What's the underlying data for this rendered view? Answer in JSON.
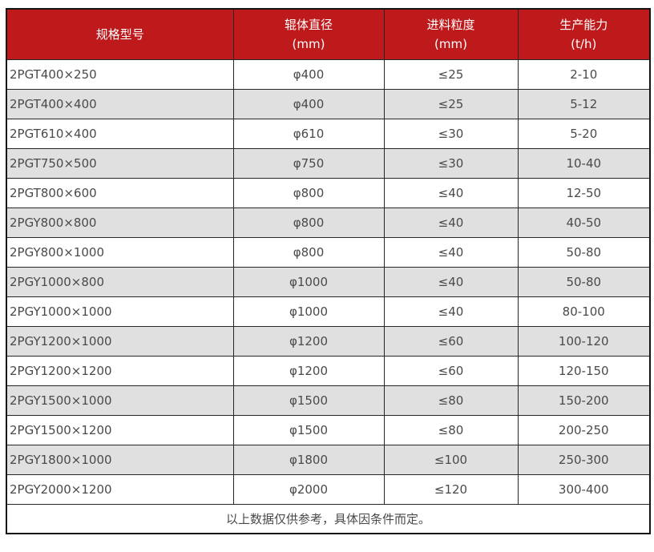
{
  "table": {
    "headers": [
      {
        "label": "规格型号",
        "sub": ""
      },
      {
        "label": "辊体直径",
        "sub": "(mm)"
      },
      {
        "label": "进料粒度",
        "sub": "(mm)"
      },
      {
        "label": "生产能力",
        "sub": "(t/h)"
      }
    ],
    "rows": [
      [
        "2PGT400×250",
        "φ400",
        "≤25",
        "2-10"
      ],
      [
        "2PGT400×400",
        "φ400",
        "≤25",
        "5-12"
      ],
      [
        "2PGT610×400",
        "φ610",
        "≤30",
        "5-20"
      ],
      [
        "2PGT750×500",
        "φ750",
        "≤30",
        "10-40"
      ],
      [
        "2PGT800×600",
        "φ800",
        "≤40",
        "12-50"
      ],
      [
        "2PGY800×800",
        "φ800",
        "≤40",
        "40-50"
      ],
      [
        "2PGY800×1000",
        "φ800",
        "≤40",
        "50-80"
      ],
      [
        "2PGY1000×800",
        "φ1000",
        "≤40",
        "50-80"
      ],
      [
        "2PGY1000×1000",
        "φ1000",
        "≤40",
        "80-100"
      ],
      [
        "2PGY1200×1000",
        "φ1200",
        "≤60",
        "100-120"
      ],
      [
        "2PGY1200×1200",
        "φ1200",
        "≤60",
        "120-150"
      ],
      [
        "2PGY1500×1000",
        "φ1500",
        "≤80",
        "150-200"
      ],
      [
        "2PGY1500×1200",
        "φ1500",
        "≤80",
        "200-250"
      ],
      [
        "2PGY1800×1000",
        "φ1800",
        "≤100",
        "250-300"
      ],
      [
        "2PGY2000×1200",
        "φ2000",
        "≤120",
        "300-400"
      ]
    ],
    "footnote": "以上数据仅供参考，具体因条件而定。"
  },
  "colors": {
    "header_bg": "#be1a1c",
    "header_text": "#ffffff",
    "row_bg": "#ffffff",
    "row_alt_bg": "#e0e0e0",
    "border": "#262626",
    "cell_text": "#4a4a4a"
  }
}
